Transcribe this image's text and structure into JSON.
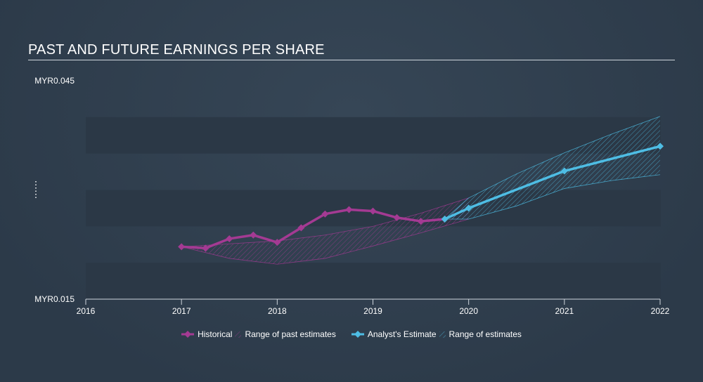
{
  "title": "PAST AND FUTURE EARNINGS PER SHARE",
  "colors": {
    "historical": "#a43a93",
    "estimate": "#4ebde4",
    "band": "#2b3846"
  },
  "legend": {
    "historical": "Historical",
    "past_range": "Range of past estimates",
    "estimate": "Analyst's Estimate",
    "future_range": "Range of estimates"
  },
  "chart_data": {
    "type": "line",
    "title": "PAST AND FUTURE EARNINGS PER SHARE",
    "xlabel": "",
    "ylabel": "",
    "xlim": [
      2016,
      2022
    ],
    "ylim": [
      0.015,
      0.045
    ],
    "x_ticks": [
      "2016",
      "2017",
      "2018",
      "2019",
      "2020",
      "2021",
      "2022"
    ],
    "y_ticks": [
      "MYR0.045",
      "MYR0.015"
    ],
    "legend_position": "bottom",
    "series": [
      {
        "name": "Historical",
        "x": [
          2017.0,
          2017.25,
          2017.5,
          2017.75,
          2018.0,
          2018.25,
          2018.5,
          2018.75,
          2019.0,
          2019.25,
          2019.5,
          2019.75
        ],
        "y": [
          0.0222,
          0.022,
          0.0233,
          0.0238,
          0.0228,
          0.0248,
          0.0267,
          0.0273,
          0.0271,
          0.0262,
          0.0257,
          0.026
        ]
      },
      {
        "name": "Analyst's Estimate",
        "x": [
          2019.75,
          2020.0,
          2021.0,
          2022.0
        ],
        "y": [
          0.026,
          0.0275,
          0.0326,
          0.036
        ]
      }
    ],
    "ranges": [
      {
        "name": "Range of past estimates",
        "x": [
          2017.0,
          2017.5,
          2018.0,
          2018.5,
          2019.0,
          2019.5,
          2020.0
        ],
        "upper": [
          0.0222,
          0.0226,
          0.023,
          0.0238,
          0.025,
          0.0268,
          0.0289
        ],
        "lower": [
          0.0222,
          0.0206,
          0.0198,
          0.0206,
          0.0223,
          0.0241,
          0.026
        ]
      },
      {
        "name": "Range of estimates",
        "x": [
          2019.75,
          2020.0,
          2020.5,
          2021.0,
          2021.5,
          2022.0
        ],
        "upper": [
          0.026,
          0.0289,
          0.0322,
          0.0351,
          0.0377,
          0.0401
        ],
        "lower": [
          0.026,
          0.026,
          0.0278,
          0.0302,
          0.0313,
          0.0321
        ]
      }
    ]
  }
}
